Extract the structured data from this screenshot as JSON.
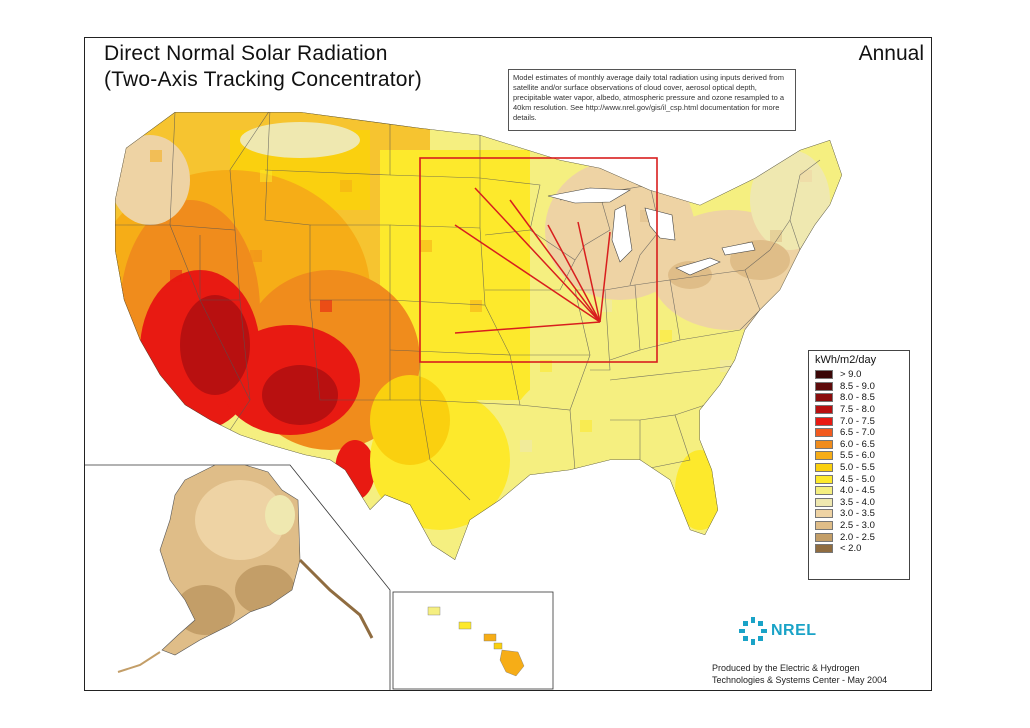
{
  "title_line1": "Direct Normal Solar Radiation",
  "title_line2": "(Two-Axis Tracking Concentrator)",
  "period": "Annual",
  "note": "Model estimates of monthly average daily total radiation using inputs derived from satellite and/or surface observations of cloud cover, aerosol optical depth, precipitable water vapor, albedo, atmospheric pressure and ozone resampled to a 40km resolution. See http://www.nrel.gov/gis/il_csp.html documentation for more details.",
  "legend": {
    "title": "kWh/m2/day",
    "items": [
      {
        "label": "> 9.0",
        "color": "#3a0707"
      },
      {
        "label": "8.5 - 9.0",
        "color": "#5e0b0b"
      },
      {
        "label": "8.0 - 8.5",
        "color": "#8a0d0d"
      },
      {
        "label": "7.5 - 8.0",
        "color": "#b81010"
      },
      {
        "label": "7.0 - 7.5",
        "color": "#e81a12"
      },
      {
        "label": "6.5 - 7.0",
        "color": "#f25a1f"
      },
      {
        "label": "6.0 - 6.5",
        "color": "#f08c1c"
      },
      {
        "label": "5.5 - 6.0",
        "color": "#f6ad17"
      },
      {
        "label": "5.0 - 5.5",
        "color": "#fad00f"
      },
      {
        "label": "4.5 - 5.0",
        "color": "#fde92c"
      },
      {
        "label": "4.0 - 4.5",
        "color": "#f5ef80"
      },
      {
        "label": "3.5 - 4.0",
        "color": "#efe8b0"
      },
      {
        "label": "3.0 - 3.5",
        "color": "#eed3a4"
      },
      {
        "label": "2.5 - 3.0",
        "color": "#dfbd88"
      },
      {
        "label": "2.0 - 2.5",
        "color": "#c39e68"
      },
      {
        "label": "< 2.0",
        "color": "#8f6c40"
      }
    ]
  },
  "logo_text": "NREL",
  "credit_line1": "Produced by the Electric & Hydrogen",
  "credit_line2": "Technologies & Systems Center - May 2004",
  "colors": {
    "highlight": "#d81e1e",
    "frame": "#222222"
  }
}
